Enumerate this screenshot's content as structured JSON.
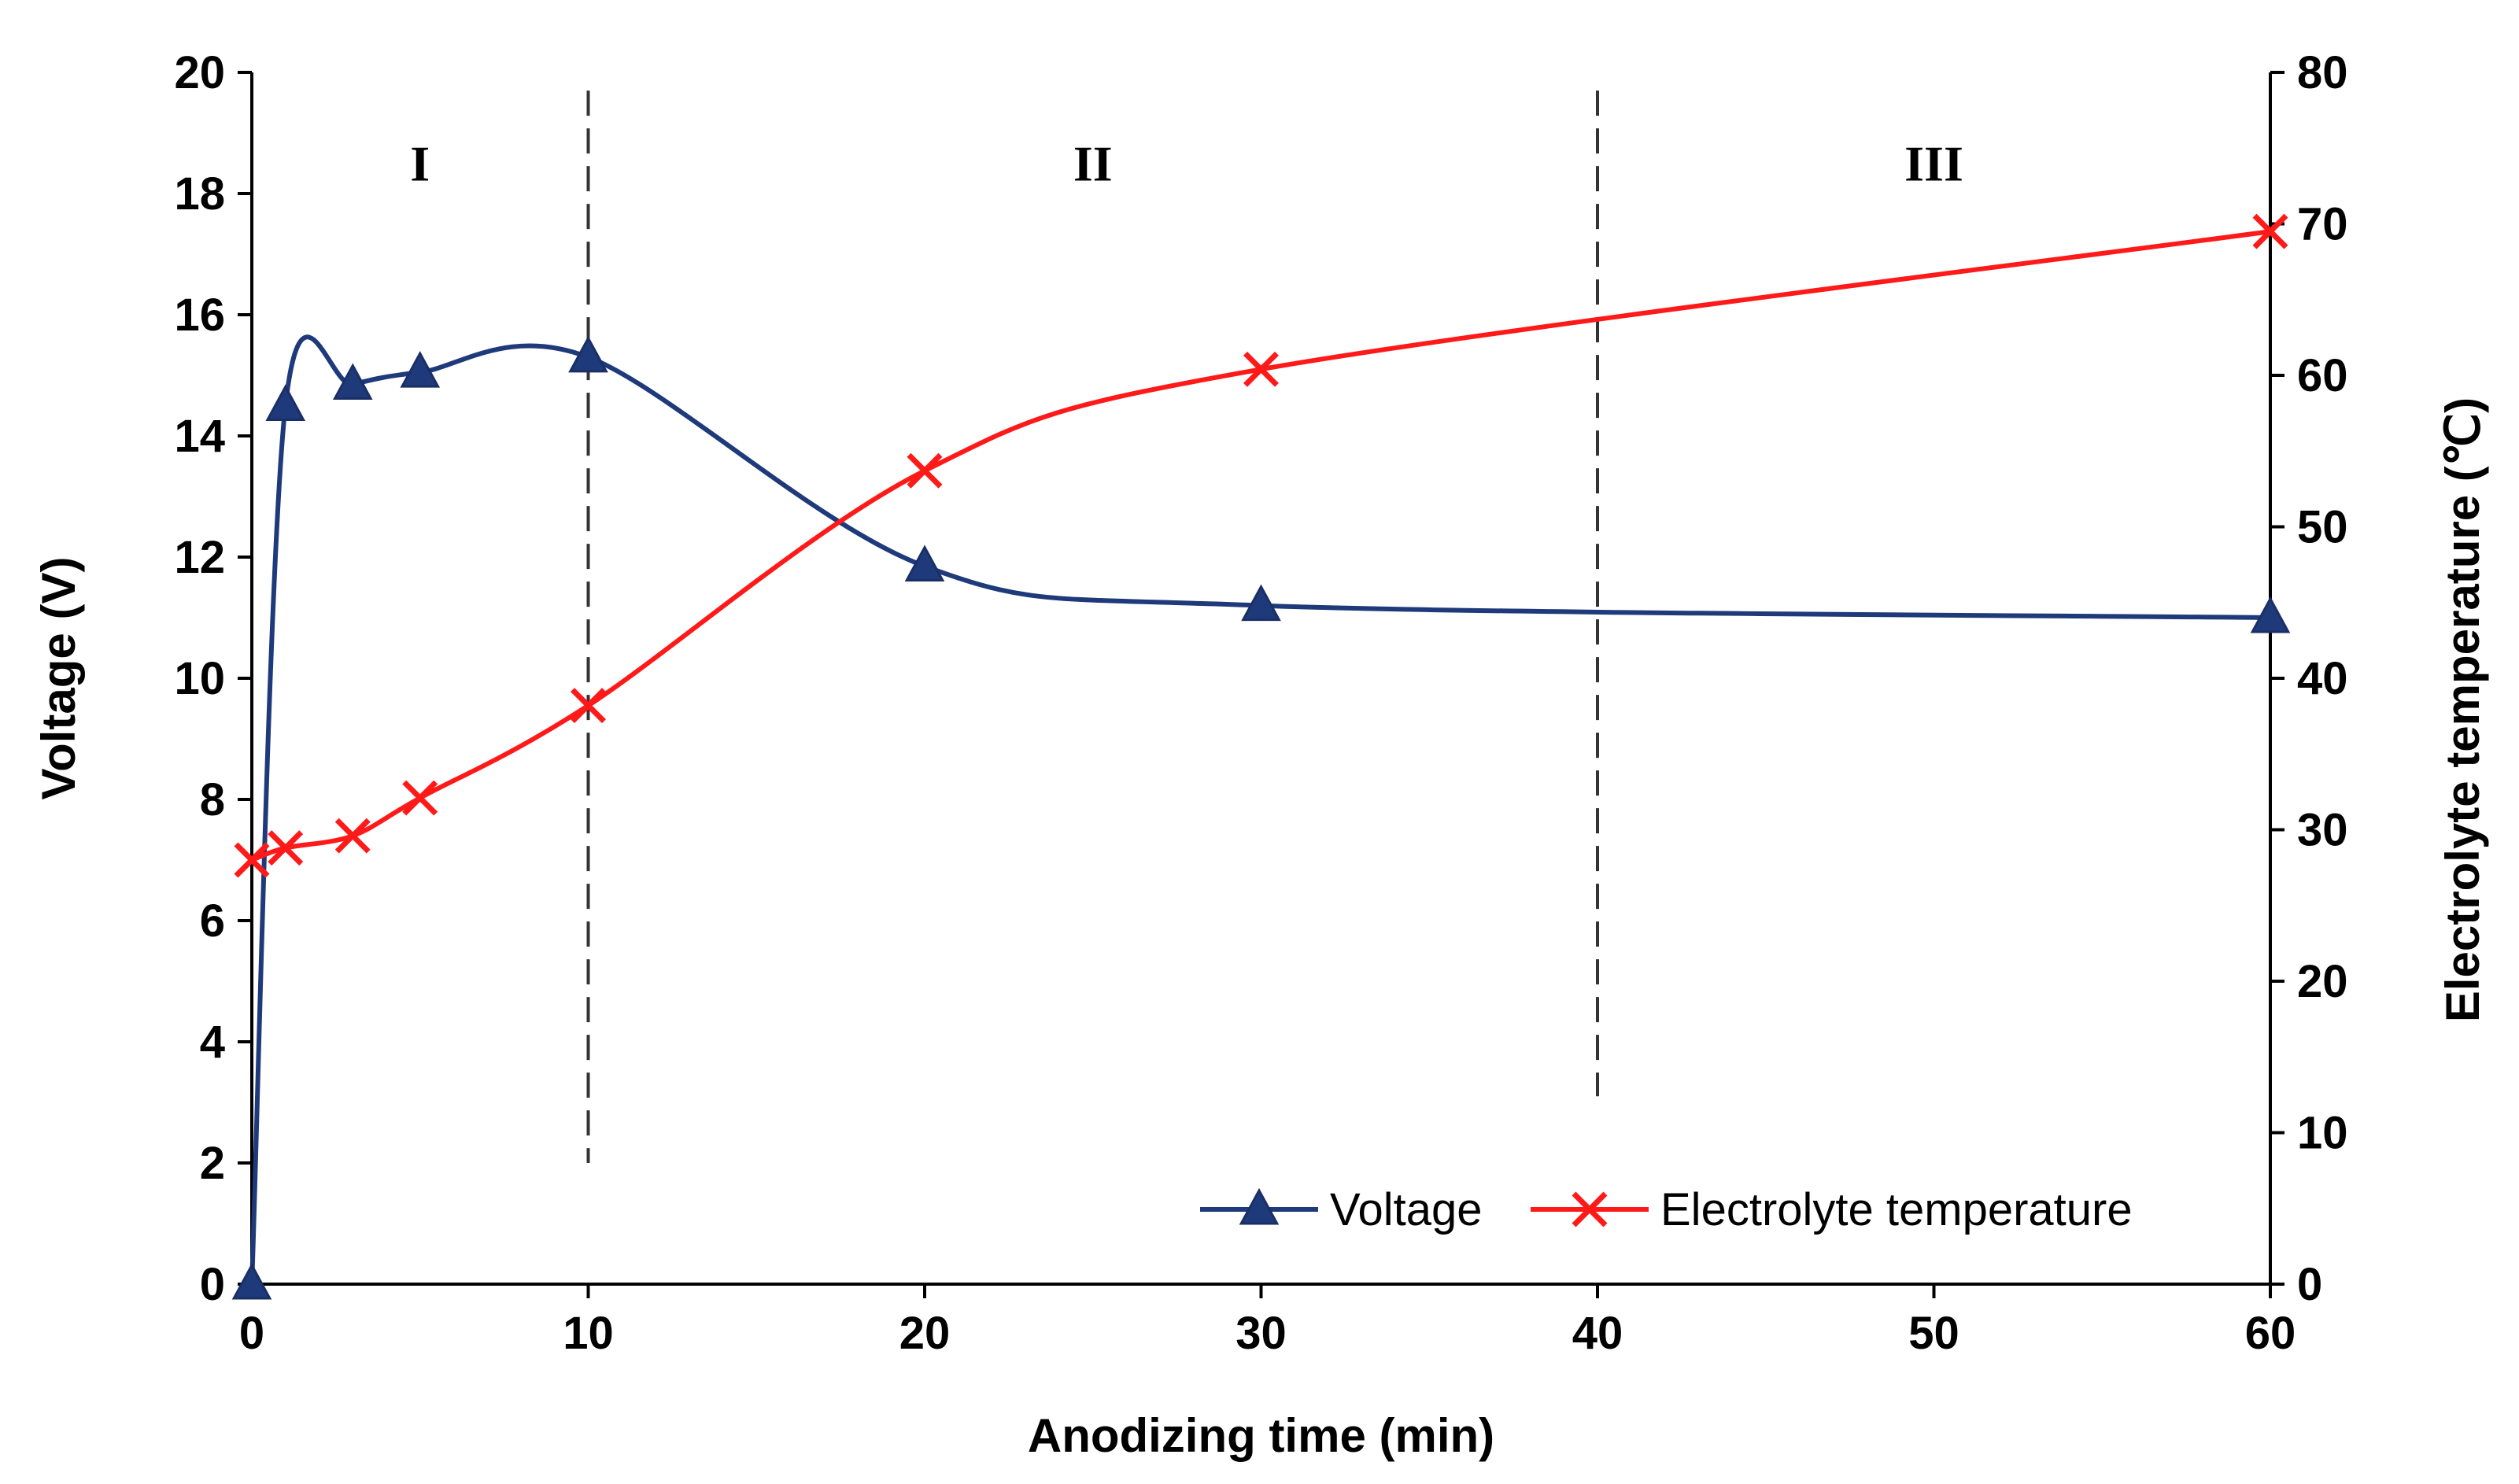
{
  "chart_data": {
    "type": "line",
    "x": [
      0,
      1,
      3,
      5,
      10,
      20,
      30,
      60
    ],
    "series": [
      {
        "name": "Voltage",
        "axis": "left",
        "marker": "triangle",
        "color": "#1f3a7a",
        "values": [
          0,
          14.5,
          14.85,
          15.05,
          15.3,
          11.85,
          11.2,
          11.0
        ]
      },
      {
        "name": "Electrolyte temperature",
        "axis": "right",
        "marker": "x",
        "color": "#ff1a1a",
        "values": [
          28,
          28.8,
          29.6,
          32.1,
          38.2,
          53.7,
          60.4,
          69.5
        ]
      }
    ],
    "xlabel": "Anodizing  time  (min)",
    "ylabel": "Voltage (V)",
    "y2label": "Electrolyte temperature (℃)",
    "xlim": [
      0,
      60
    ],
    "ylim": [
      0,
      20
    ],
    "y2lim": [
      0,
      80
    ],
    "xticks": [
      0,
      10,
      20,
      30,
      40,
      50,
      60
    ],
    "yticks": [
      0,
      2,
      4,
      6,
      8,
      10,
      12,
      14,
      16,
      18,
      20
    ],
    "y2ticks": [
      0,
      10,
      20,
      30,
      40,
      50,
      60,
      70,
      80
    ],
    "region_dividers": [
      {
        "x": 10,
        "from": 2,
        "to": 19.7
      },
      {
        "x": 40,
        "from": 3.1,
        "to": 19.7
      }
    ],
    "region_labels": [
      {
        "label": "I",
        "x": 5,
        "y": 18.5
      },
      {
        "label": "II",
        "x": 25,
        "y": 18.5
      },
      {
        "label": "III",
        "x": 50,
        "y": 18.5
      }
    ],
    "legend": {
      "position": "bottom-right",
      "entries": [
        "Voltage",
        "Electrolyte temperature"
      ]
    },
    "grid": false
  }
}
